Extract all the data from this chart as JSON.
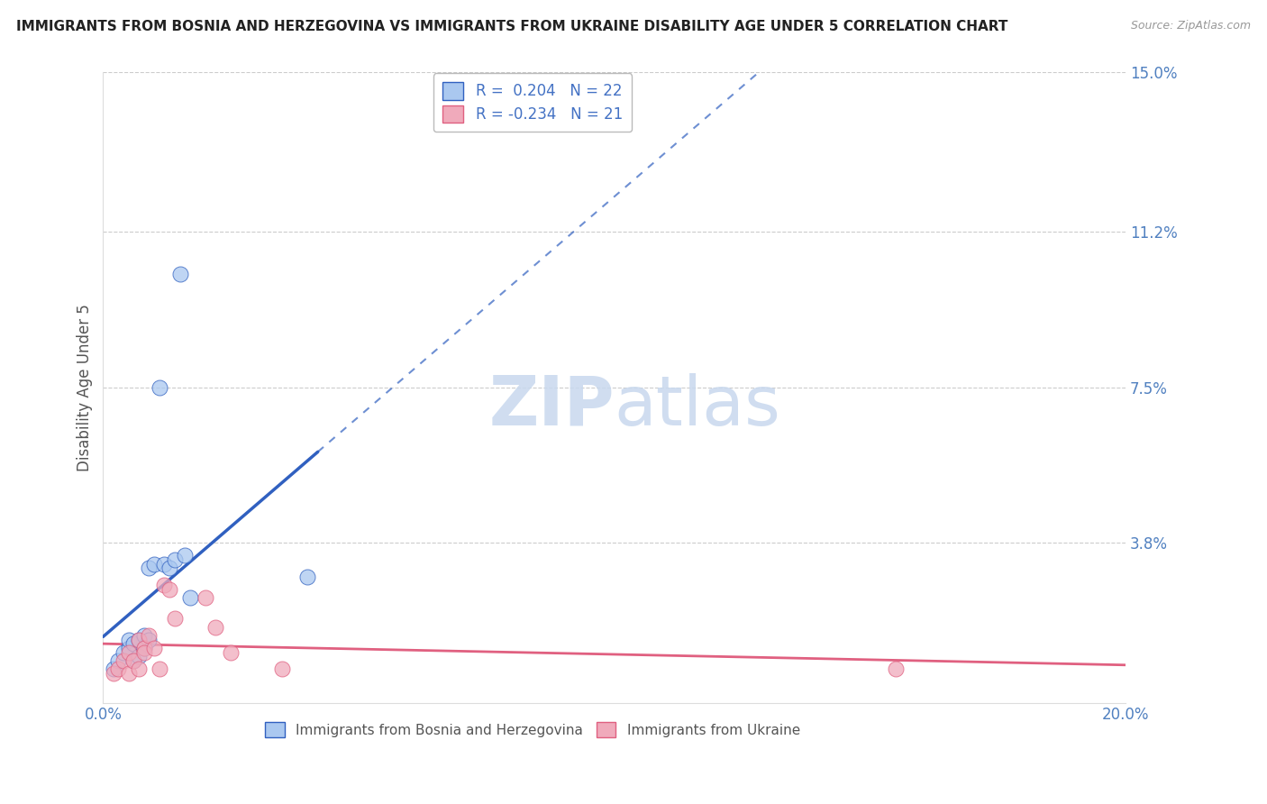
{
  "title": "IMMIGRANTS FROM BOSNIA AND HERZEGOVINA VS IMMIGRANTS FROM UKRAINE DISABILITY AGE UNDER 5 CORRELATION CHART",
  "source": "Source: ZipAtlas.com",
  "ylabel": "Disability Age Under 5",
  "xlim": [
    0.0,
    0.2
  ],
  "ylim": [
    0.0,
    0.15
  ],
  "yticks_right": [
    0.15,
    0.112,
    0.075,
    0.038,
    0.0
  ],
  "ytick_labels_right": [
    "15.0%",
    "11.2%",
    "7.5%",
    "3.8%",
    ""
  ],
  "bosnia_R": 0.204,
  "bosnia_N": 22,
  "ukraine_R": -0.234,
  "ukraine_N": 21,
  "bosnia_color": "#aac8f0",
  "ukraine_color": "#f0aabb",
  "bosnia_line_color": "#3060c0",
  "ukraine_line_color": "#e06080",
  "bosnia_x": [
    0.002,
    0.003,
    0.004,
    0.005,
    0.005,
    0.006,
    0.006,
    0.007,
    0.007,
    0.008,
    0.008,
    0.009,
    0.009,
    0.01,
    0.011,
    0.012,
    0.013,
    0.014,
    0.015,
    0.016,
    0.017,
    0.04
  ],
  "bosnia_y": [
    0.008,
    0.01,
    0.012,
    0.013,
    0.015,
    0.01,
    0.014,
    0.011,
    0.015,
    0.013,
    0.016,
    0.015,
    0.032,
    0.033,
    0.075,
    0.033,
    0.032,
    0.034,
    0.102,
    0.035,
    0.025,
    0.03
  ],
  "ukraine_x": [
    0.002,
    0.003,
    0.004,
    0.005,
    0.005,
    0.006,
    0.007,
    0.007,
    0.008,
    0.008,
    0.009,
    0.01,
    0.011,
    0.012,
    0.013,
    0.014,
    0.02,
    0.022,
    0.025,
    0.035,
    0.155
  ],
  "ukraine_y": [
    0.007,
    0.008,
    0.01,
    0.007,
    0.012,
    0.01,
    0.008,
    0.015,
    0.013,
    0.012,
    0.016,
    0.013,
    0.008,
    0.028,
    0.027,
    0.02,
    0.025,
    0.018,
    0.012,
    0.008,
    0.008
  ],
  "background_color": "#ffffff",
  "grid_color": "#cccccc"
}
